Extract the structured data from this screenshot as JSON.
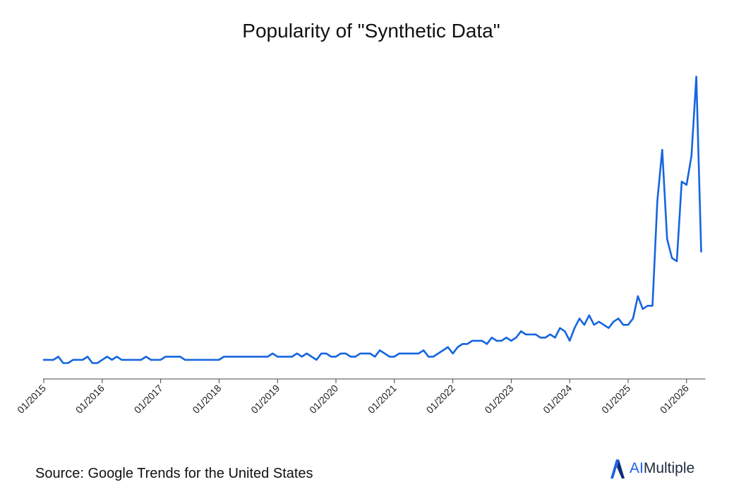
{
  "footer": {
    "source": "Source: Google Trends for the United States",
    "brand_ai": "AI",
    "brand_rest": "Multiple"
  },
  "colors": {
    "line": "#1565e0",
    "axis": "#444444",
    "brand": "#1a63e8"
  },
  "chart_data": {
    "type": "line",
    "title": "Popularity of \"Synthetic Data\"",
    "xlabel": "",
    "ylabel": "",
    "x_axis": "monthly, 01/2015 to 03/2026",
    "ylim": [
      0,
      100
    ],
    "grid": false,
    "legend": "none",
    "tick_labels": [
      "01/2015",
      "01/2016",
      "01/2017",
      "01/2018",
      "01/2019",
      "01/2020",
      "01/2021",
      "01/2022",
      "01/2023",
      "01/2024",
      "01/2025",
      "01/2026"
    ],
    "series": [
      {
        "values": [
          6,
          6,
          6,
          7,
          5,
          5,
          6,
          6,
          6,
          7,
          5,
          5,
          6,
          7,
          6,
          7,
          6,
          6,
          6,
          6,
          6,
          7,
          6,
          6,
          6,
          7,
          7,
          7,
          7,
          6,
          6,
          6,
          6,
          6,
          6,
          6,
          6,
          7,
          7,
          7,
          7,
          7,
          7,
          7,
          7,
          7,
          7,
          8,
          7,
          7,
          7,
          7,
          8,
          7,
          8,
          7,
          6,
          8,
          8,
          7,
          7,
          8,
          8,
          7,
          7,
          8,
          8,
          8,
          7,
          9,
          8,
          7,
          7,
          8,
          8,
          8,
          8,
          8,
          9,
          7,
          7,
          8,
          9,
          10,
          8,
          10,
          11,
          11,
          12,
          12,
          12,
          11,
          13,
          12,
          12,
          13,
          12,
          13,
          15,
          14,
          14,
          14,
          13,
          13,
          14,
          13,
          16,
          15,
          12,
          16,
          19,
          17,
          20,
          17,
          18,
          17,
          16,
          18,
          19,
          17,
          17,
          19,
          26,
          22,
          23,
          23,
          56,
          72,
          44,
          38,
          37,
          62,
          61,
          70,
          95,
          40
        ]
      }
    ]
  }
}
